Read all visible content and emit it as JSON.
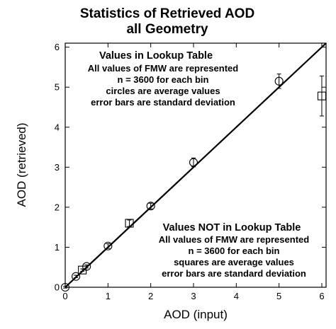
{
  "chart_data": {
    "type": "scatter",
    "title": [
      "Statistics of Retrieved AOD",
      "all Geometry"
    ],
    "xlabel": "AOD (input)",
    "ylabel": "AOD (retrieved)",
    "xlim": [
      0,
      6.1
    ],
    "ylim": [
      0,
      6.1
    ],
    "xticks": [
      0,
      1,
      2,
      3,
      4,
      5,
      6
    ],
    "yticks": [
      0,
      1,
      2,
      3,
      4,
      5,
      6
    ],
    "grid": false,
    "reference_line": {
      "x": [
        0,
        6.1
      ],
      "y": [
        0,
        6.1
      ]
    },
    "series": [
      {
        "marker": "circle",
        "x": [
          0,
          0.25,
          0.5,
          1,
          2,
          3,
          5
        ],
        "y": [
          0,
          0.27,
          0.52,
          1.03,
          2.03,
          3.12,
          5.15
        ],
        "error": [
          0.02,
          0.03,
          0.04,
          0.06,
          0.07,
          0.11,
          0.18
        ]
      },
      {
        "marker": "square",
        "x": [
          0.4,
          1.5,
          6
        ],
        "y": [
          0.43,
          1.6,
          4.78
        ],
        "error": [
          0.03,
          0.08,
          0.5
        ]
      }
    ],
    "annotations": [
      {
        "lines": [
          "Values in Lookup Table",
          "All values of FMW are represented",
          "n = 3600 for each bin",
          "circles are average values",
          "error bars are standard deviation"
        ]
      },
      {
        "lines": [
          "Values NOT in Lookup Table",
          "All values of FMW are represented",
          "n = 3600 for each bin",
          "squares are average values",
          "error bars are standard deviation"
        ]
      }
    ]
  }
}
